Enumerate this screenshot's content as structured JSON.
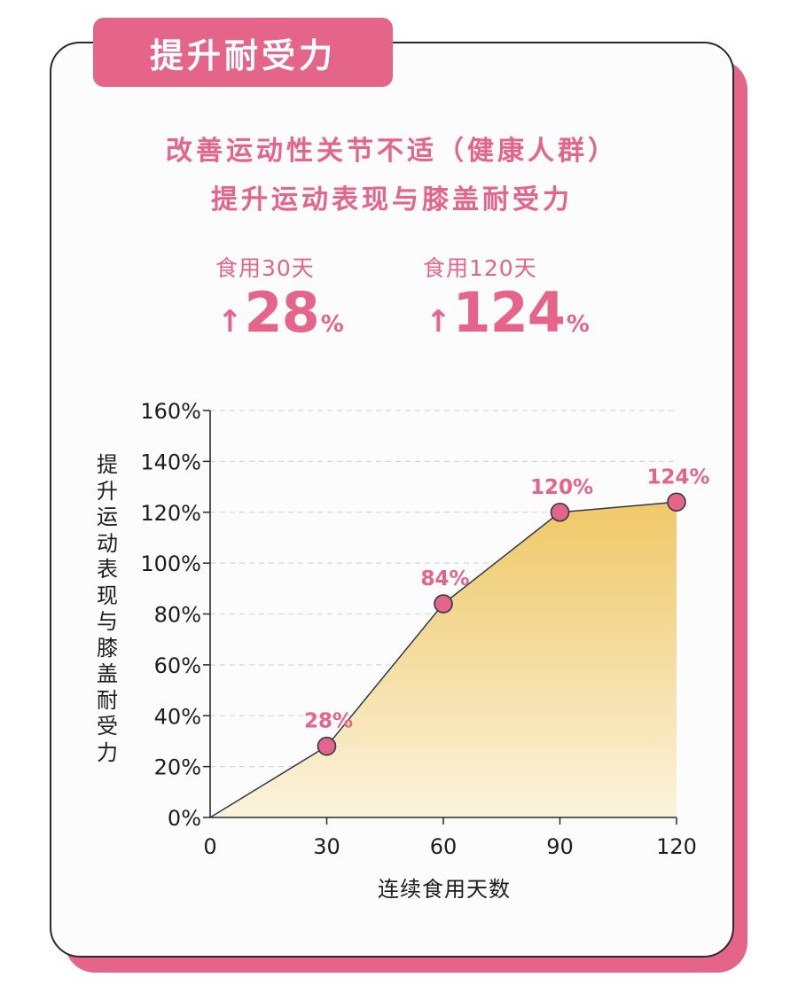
{
  "header": {
    "tag": "提升耐受力",
    "subtitle_line1": "改善运动性关节不适（健康人群）",
    "subtitle_line2": "提升运动表现与膝盖耐受力"
  },
  "stats": [
    {
      "label": "食用30天",
      "arrow": "↑",
      "value": "28",
      "unit": "%"
    },
    {
      "label": "食用120天",
      "arrow": "↑",
      "value": "124",
      "unit": "%"
    }
  ],
  "colors": {
    "accent": "#e4648a",
    "area_top": "#efc867",
    "area_bottom": "#fbf3dc",
    "line": "#2d3a4a",
    "grid": "#d0d8e2"
  },
  "chart_data": {
    "type": "area",
    "x": [
      0,
      30,
      60,
      90,
      120
    ],
    "values": [
      0,
      28,
      84,
      120,
      124
    ],
    "point_labels": [
      "",
      "28%",
      "84%",
      "120%",
      "124%"
    ],
    "xlabel": "连续食用天数",
    "ylabel": "提升运动表现与膝盖耐受力",
    "xticks": [
      "0",
      "30",
      "60",
      "90",
      "120"
    ],
    "yticks": [
      "0%",
      "20%",
      "40%",
      "60%",
      "80%",
      "100%",
      "120%",
      "140%",
      "160%"
    ],
    "xlim": [
      0,
      120
    ],
    "ylim": [
      0,
      160
    ],
    "grid": true
  }
}
